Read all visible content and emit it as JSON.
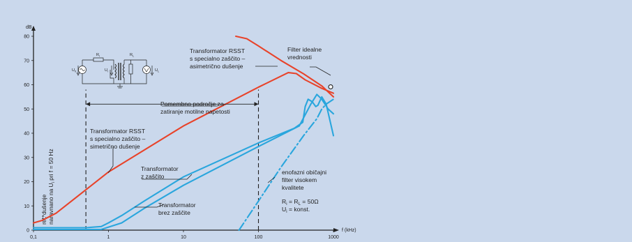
{
  "chart_data": {
    "type": "line",
    "x_scale": "log",
    "xlabel": "f (kHz)",
    "ylabel": "dB",
    "ylabel_side": [
      "rel. dušenje",
      "naravnano na U",
      "i",
      " pri f = 50 Hz"
    ],
    "xlim": [
      0.1,
      1000
    ],
    "ylim": [
      0,
      80
    ],
    "x_ticks": [
      "0,1",
      "1",
      "10",
      "100",
      "1000"
    ],
    "y_ticks": [
      "0",
      "10",
      "20",
      "30",
      "40",
      "50",
      "60",
      "70",
      "80"
    ],
    "series": [
      {
        "name": "Transformator RSST s specialno zaščito – simetrično dušenje",
        "color": "#e8432a",
        "points": [
          [
            0.1,
            3
          ],
          [
            0.13,
            4
          ],
          [
            0.2,
            7
          ],
          [
            1,
            24
          ],
          [
            10,
            43
          ],
          [
            100,
            59
          ],
          [
            250,
            65
          ],
          [
            320,
            64.6
          ],
          [
            420,
            62
          ],
          [
            700,
            58.5
          ],
          [
            1000,
            56.5
          ]
        ]
      },
      {
        "name": "Transformator RSST s specialno zaščito – asimetrično dušenje",
        "color": "#e8432a",
        "points": [
          [
            50,
            80
          ],
          [
            70,
            79
          ],
          [
            100,
            76
          ],
          [
            200,
            70
          ],
          [
            400,
            64.5
          ],
          [
            700,
            59.5
          ],
          [
            1000,
            55
          ]
        ]
      },
      {
        "name": "Transformator z zaščito",
        "color": "#2aa6dd",
        "points": [
          [
            0.1,
            1
          ],
          [
            0.5,
            1
          ],
          [
            0.8,
            1.5
          ],
          [
            1,
            3
          ],
          [
            1.5,
            6
          ],
          [
            3,
            12
          ],
          [
            10,
            22
          ],
          [
            100,
            36
          ],
          [
            300,
            42
          ],
          [
            390,
            44.5
          ],
          [
            420,
            51
          ],
          [
            460,
            54
          ],
          [
            520,
            53
          ],
          [
            580,
            51
          ],
          [
            620,
            51.5
          ],
          [
            700,
            55
          ],
          [
            800,
            52
          ],
          [
            1000,
            39
          ]
        ]
      },
      {
        "name": "Transformator brez zaščite",
        "color": "#2aa6dd",
        "points": [
          [
            0.1,
            0.3
          ],
          [
            0.8,
            0.3
          ],
          [
            1.5,
            3
          ],
          [
            3,
            9
          ],
          [
            10,
            18.5
          ],
          [
            100,
            34.5
          ],
          [
            350,
            43
          ],
          [
            500,
            52
          ],
          [
            600,
            56
          ],
          [
            700,
            54
          ],
          [
            850,
            50
          ],
          [
            1000,
            48
          ]
        ]
      },
      {
        "name": "enofazni običajni filter visokem kvalitete",
        "color": "#2aa6dd",
        "dashed": true,
        "points": [
          [
            55,
            0
          ],
          [
            100,
            12
          ],
          [
            200,
            26
          ],
          [
            400,
            39
          ],
          [
            600,
            46
          ],
          [
            700,
            50
          ],
          [
            800,
            52
          ],
          [
            1000,
            54
          ]
        ]
      }
    ],
    "markers": [
      {
        "x": 0.5,
        "y_top": 58,
        "dashed": true
      },
      {
        "x": 100,
        "y_top": 58,
        "dashed": true
      }
    ],
    "range_arrow": {
      "x_from": 0.5,
      "x_to": 100,
      "y": 52
    },
    "ideal_filter_point": {
      "x": 1000,
      "y": 62
    },
    "annotations": {
      "ideal_filter": [
        "Filter idealne",
        "vrednosti"
      ],
      "rsst_asym": [
        "Transformator RSST",
        "s specialno zaščito –",
        "asimetrično dušenje"
      ],
      "important_range": [
        "Pomembno področje za",
        "zatiranje motilne napetosti"
      ],
      "rsst_sym": [
        "Transformator RSST",
        "s specialno zaščito –",
        "simetrično dušenje"
      ],
      "with_protection": [
        "Transformator",
        "z zaščito"
      ],
      "without_protection": [
        "Transformator",
        "brez zaščite"
      ],
      "single_phase_filter": [
        "enofazni običajni",
        "filter visokem",
        "kvalitete"
      ],
      "resistor_eq": [
        "R",
        "i",
        " = R",
        "L",
        " = 50Ω"
      ],
      "voltage_eq": [
        "U",
        "i",
        " = konst."
      ]
    },
    "circuit_labels": {
      "u0": [
        "U",
        "0"
      ],
      "ri": [
        "R",
        "i"
      ],
      "ui": [
        "U",
        "i"
      ],
      "rl": [
        "R",
        "L"
      ],
      "ul": [
        "U",
        "L"
      ]
    }
  },
  "colors": {
    "background": "#cad8ec",
    "red": "#e8432a",
    "blue": "#2aa6dd",
    "ink": "#222222"
  }
}
